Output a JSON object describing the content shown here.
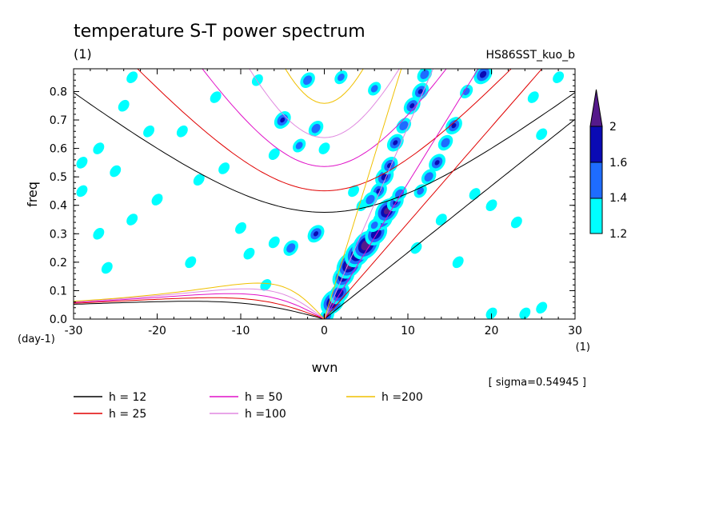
{
  "chart_data": {
    "type": "heatmap",
    "title": "temperature S-T power spectrum",
    "title_unit": "(1)",
    "dataset_label": "HS86SST_kuo_b",
    "xlabel": "wvn",
    "ylabel": "freq",
    "y_unit": "(day-1)",
    "x_unit": "(1)",
    "xlim": [
      -30,
      30
    ],
    "ylim": [
      0,
      0.88
    ],
    "x_ticks": [
      "-30",
      "-20",
      "-10",
      "0",
      "10",
      "20",
      "30"
    ],
    "y_ticks": [
      "0.0",
      "0.1",
      "0.2",
      "0.3",
      "0.4",
      "0.5",
      "0.6",
      "0.7",
      "0.8"
    ],
    "sigma_note": "[ sigma=0.54945 ]",
    "colorbar": {
      "levels": [
        "1.2",
        "1.4",
        "1.6",
        "2"
      ],
      "colors": [
        "#00ffff",
        "#1e6cff",
        "#0a0ab4",
        "#551a8b"
      ]
    },
    "legend": [
      {
        "label": "h = 12",
        "color": "#000000"
      },
      {
        "label": "h = 25",
        "color": "#e00000"
      },
      {
        "label": "h = 50",
        "color": "#e010c8"
      },
      {
        "label": "h =100",
        "color": "#e088e0"
      },
      {
        "label": "h =200",
        "color": "#f0c000"
      }
    ],
    "dispersion_curves": [
      {
        "name": "h = 12",
        "h": 12,
        "color": "#000000"
      },
      {
        "name": "h = 25",
        "h": 25,
        "color": "#e00000"
      },
      {
        "name": "h = 50",
        "h": 50,
        "color": "#e010c8"
      },
      {
        "name": "h =100",
        "h": 100,
        "color": "#e088e0"
      },
      {
        "name": "h =200",
        "h": 200,
        "color": "#f0c000"
      }
    ],
    "blobs": [
      {
        "x": 0.3,
        "y": 0.01,
        "v": 1.5
      },
      {
        "x": 1.0,
        "y": 0.06,
        "v": 2.0
      },
      {
        "x": 1.8,
        "y": 0.09,
        "v": 1.8
      },
      {
        "x": 2.3,
        "y": 0.15,
        "v": 1.9
      },
      {
        "x": 3.0,
        "y": 0.19,
        "v": 2.1
      },
      {
        "x": 4.0,
        "y": 0.23,
        "v": 2.1
      },
      {
        "x": 5.0,
        "y": 0.26,
        "v": 2.2
      },
      {
        "x": 6.2,
        "y": 0.3,
        "v": 1.9
      },
      {
        "x": 7.0,
        "y": 0.35,
        "v": 1.8
      },
      {
        "x": 7.5,
        "y": 0.38,
        "v": 2.0
      },
      {
        "x": 8.5,
        "y": 0.41,
        "v": 1.6
      },
      {
        "x": 9.0,
        "y": 0.44,
        "v": 1.5
      },
      {
        "x": 6.5,
        "y": 0.45,
        "v": 1.6
      },
      {
        "x": 7.2,
        "y": 0.5,
        "v": 1.7
      },
      {
        "x": 7.8,
        "y": 0.54,
        "v": 1.6
      },
      {
        "x": 8.5,
        "y": 0.62,
        "v": 1.6
      },
      {
        "x": 9.5,
        "y": 0.68,
        "v": 1.5
      },
      {
        "x": 10.5,
        "y": 0.75,
        "v": 1.6
      },
      {
        "x": 11.5,
        "y": 0.8,
        "v": 1.6
      },
      {
        "x": 12.0,
        "y": 0.86,
        "v": 1.5
      },
      {
        "x": 11.5,
        "y": 0.45,
        "v": 1.4
      },
      {
        "x": 12.5,
        "y": 0.5,
        "v": 1.5
      },
      {
        "x": 13.5,
        "y": 0.55,
        "v": 1.6
      },
      {
        "x": 14.5,
        "y": 0.62,
        "v": 1.5
      },
      {
        "x": 15.5,
        "y": 0.68,
        "v": 1.6
      },
      {
        "x": 17.0,
        "y": 0.8,
        "v": 1.4
      },
      {
        "x": 19.0,
        "y": 0.86,
        "v": 1.7
      },
      {
        "x": 6.0,
        "y": 0.33,
        "v": 1.4
      },
      {
        "x": 4.5,
        "y": 0.4,
        "v": 1.3
      },
      {
        "x": 5.5,
        "y": 0.42,
        "v": 1.5
      },
      {
        "x": 3.5,
        "y": 0.45,
        "v": 1.3
      },
      {
        "x": -1.0,
        "y": 0.3,
        "v": 1.6
      },
      {
        "x": -4.0,
        "y": 0.25,
        "v": 1.5
      },
      {
        "x": -6.0,
        "y": 0.27,
        "v": 1.3
      },
      {
        "x": -5.0,
        "y": 0.7,
        "v": 1.6
      },
      {
        "x": -3.0,
        "y": 0.61,
        "v": 1.4
      },
      {
        "x": -1.0,
        "y": 0.67,
        "v": 1.5
      },
      {
        "x": 0.0,
        "y": 0.6,
        "v": 1.3
      },
      {
        "x": -6.0,
        "y": 0.58,
        "v": 1.3
      },
      {
        "x": -2.0,
        "y": 0.84,
        "v": 1.5
      },
      {
        "x": 2.0,
        "y": 0.85,
        "v": 1.4
      },
      {
        "x": 6.0,
        "y": 0.81,
        "v": 1.4
      },
      {
        "x": -24.0,
        "y": 0.75,
        "v": 1.3
      },
      {
        "x": -21.0,
        "y": 0.66,
        "v": 1.3
      },
      {
        "x": -25.0,
        "y": 0.52,
        "v": 1.3
      },
      {
        "x": -27.0,
        "y": 0.6,
        "v": 1.3
      },
      {
        "x": -29.0,
        "y": 0.45,
        "v": 1.3
      },
      {
        "x": -20.0,
        "y": 0.42,
        "v": 1.3
      },
      {
        "x": -15.0,
        "y": 0.49,
        "v": 1.3
      },
      {
        "x": -12.0,
        "y": 0.53,
        "v": 1.3
      },
      {
        "x": -23.0,
        "y": 0.35,
        "v": 1.3
      },
      {
        "x": -16.0,
        "y": 0.2,
        "v": 1.3
      },
      {
        "x": -9.0,
        "y": 0.23,
        "v": 1.3
      },
      {
        "x": -17.0,
        "y": 0.66,
        "v": 1.3
      },
      {
        "x": -13.0,
        "y": 0.78,
        "v": 1.3
      },
      {
        "x": -8.0,
        "y": 0.84,
        "v": 1.3
      },
      {
        "x": -23.0,
        "y": 0.85,
        "v": 1.3
      },
      {
        "x": -27.0,
        "y": 0.3,
        "v": 1.3
      },
      {
        "x": -10.0,
        "y": 0.32,
        "v": 1.3
      },
      {
        "x": 14.0,
        "y": 0.35,
        "v": 1.3
      },
      {
        "x": 18.0,
        "y": 0.44,
        "v": 1.3
      },
      {
        "x": 20.0,
        "y": 0.4,
        "v": 1.3
      },
      {
        "x": 26.0,
        "y": 0.65,
        "v": 1.3
      },
      {
        "x": 28.0,
        "y": 0.85,
        "v": 1.3
      },
      {
        "x": 25.0,
        "y": 0.78,
        "v": 1.3
      },
      {
        "x": 23.0,
        "y": 0.34,
        "v": 1.3
      },
      {
        "x": 20.0,
        "y": 0.02,
        "v": 1.3
      },
      {
        "x": 24.0,
        "y": 0.02,
        "v": 1.3
      },
      {
        "x": 26.0,
        "y": 0.04,
        "v": 1.3
      },
      {
        "x": -26.0,
        "y": 0.18,
        "v": 1.3
      },
      {
        "x": -29.0,
        "y": 0.55,
        "v": 1.3
      },
      {
        "x": 16.0,
        "y": 0.2,
        "v": 1.3
      },
      {
        "x": -7.0,
        "y": 0.12,
        "v": 1.3
      },
      {
        "x": 11.0,
        "y": 0.25,
        "v": 1.3
      }
    ]
  }
}
